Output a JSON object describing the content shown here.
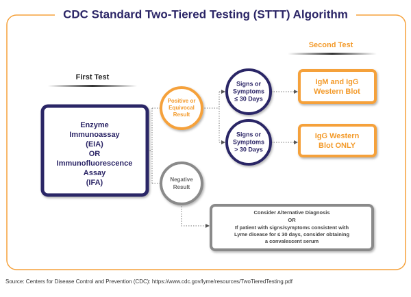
{
  "title": "CDC Standard Two-Tiered Testing (STTT) Algorithm",
  "first_test": "First Test",
  "second_test": "Second Test",
  "nodes": [
    {
      "lines": [
        "Enzyme",
        "Immunoassay",
        "(EIA)",
        "OR",
        "Immunofluorescence",
        "Assay",
        "(IFA)"
      ]
    },
    {
      "lines": [
        "Positive or",
        "Equivocal",
        "Result"
      ]
    },
    {
      "lines": [
        "Negative",
        "Result"
      ]
    },
    {
      "lines": [
        "Signs or",
        "Symptoms",
        "≤ 30 Days"
      ]
    },
    {
      "lines": [
        "Signs or",
        "Symptoms",
        "> 30 Days"
      ]
    },
    {
      "lines": [
        "IgM and IgG",
        "Western Blot"
      ]
    },
    {
      "lines": [
        "IgG Western",
        "Blot ONLY"
      ]
    },
    {
      "lines": [
        "Consider Alternative Diagnosis",
        "OR",
        "If patient with signs/symptoms consistent with",
        "Lyme disease for ≤ 30 days, consider obtaining",
        "a convalescent serum"
      ]
    }
  ],
  "source": "Source: Centers for Disease Control and Prevention (CDC): https://www.cdc.gov/lyme/resources/TwoTieredTesting.pdf"
}
